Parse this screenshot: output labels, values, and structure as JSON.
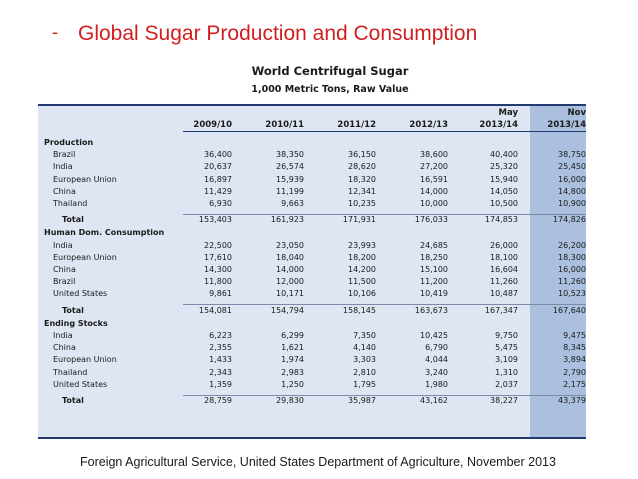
{
  "slide": {
    "bullet": "-",
    "title": "Global Sugar Production and Consumption",
    "footer": "Foreign Agricultural Service, United States Department of Agriculture, November 2013"
  },
  "table": {
    "title": "World Centrifugal Sugar",
    "subtitle": "1,000 Metric Tons, Raw Value",
    "header_top": [
      "",
      "",
      "",
      "",
      "May",
      "Nov"
    ],
    "header": [
      "2009/10",
      "2010/11",
      "2011/12",
      "2012/13",
      "2013/14",
      "2013/14"
    ],
    "sections": [
      {
        "name": "Production",
        "rows": [
          {
            "label": "Brazil",
            "values": [
              "36,400",
              "38,350",
              "36,150",
              "38,600",
              "40,400",
              "38,750"
            ]
          },
          {
            "label": "India",
            "values": [
              "20,637",
              "26,574",
              "28,620",
              "27,200",
              "25,320",
              "25,450"
            ]
          },
          {
            "label": "European Union",
            "values": [
              "16,897",
              "15,939",
              "18,320",
              "16,591",
              "15,940",
              "16,000"
            ]
          },
          {
            "label": "China",
            "values": [
              "11,429",
              "11,199",
              "12,341",
              "14,000",
              "14,050",
              "14,800"
            ]
          },
          {
            "label": "Thailand",
            "values": [
              "6,930",
              "9,663",
              "10,235",
              "10,000",
              "10,500",
              "10,900"
            ]
          }
        ],
        "total": {
          "label": "Total",
          "values": [
            "153,403",
            "161,923",
            "171,931",
            "176,033",
            "174,853",
            "174,826"
          ]
        }
      },
      {
        "name": "Human Dom. Consumption",
        "rows": [
          {
            "label": "India",
            "values": [
              "22,500",
              "23,050",
              "23,993",
              "24,685",
              "26,000",
              "26,200"
            ]
          },
          {
            "label": "European Union",
            "values": [
              "17,610",
              "18,040",
              "18,200",
              "18,250",
              "18,100",
              "18,300"
            ]
          },
          {
            "label": "China",
            "values": [
              "14,300",
              "14,000",
              "14,200",
              "15,100",
              "16,604",
              "16,000"
            ]
          },
          {
            "label": "Brazil",
            "values": [
              "11,800",
              "12,000",
              "11,500",
              "11,200",
              "11,260",
              "11,260"
            ]
          },
          {
            "label": "United States",
            "values": [
              "9,861",
              "10,171",
              "10,106",
              "10,419",
              "10,487",
              "10,523"
            ]
          }
        ],
        "total": {
          "label": "Total",
          "values": [
            "154,081",
            "154,794",
            "158,145",
            "163,673",
            "167,347",
            "167,640"
          ]
        }
      },
      {
        "name": "Ending Stocks",
        "rows": [
          {
            "label": "India",
            "values": [
              "6,223",
              "6,299",
              "7,350",
              "10,425",
              "9,750",
              "9,475"
            ]
          },
          {
            "label": "China",
            "values": [
              "2,355",
              "1,621",
              "4,140",
              "6,790",
              "5,475",
              "8,345"
            ]
          },
          {
            "label": "European Union",
            "values": [
              "1,433",
              "1,974",
              "3,303",
              "4,044",
              "3,109",
              "3,894"
            ]
          },
          {
            "label": "Thailand",
            "values": [
              "2,343",
              "2,983",
              "2,810",
              "3,240",
              "1,310",
              "2,790"
            ]
          },
          {
            "label": "United States",
            "values": [
              "1,359",
              "1,250",
              "1,795",
              "1,980",
              "2,037",
              "2,175"
            ]
          }
        ],
        "total": {
          "label": "Total",
          "values": [
            "28,759",
            "29,830",
            "35,987",
            "43,162",
            "38,227",
            "43,379"
          ]
        }
      }
    ]
  }
}
